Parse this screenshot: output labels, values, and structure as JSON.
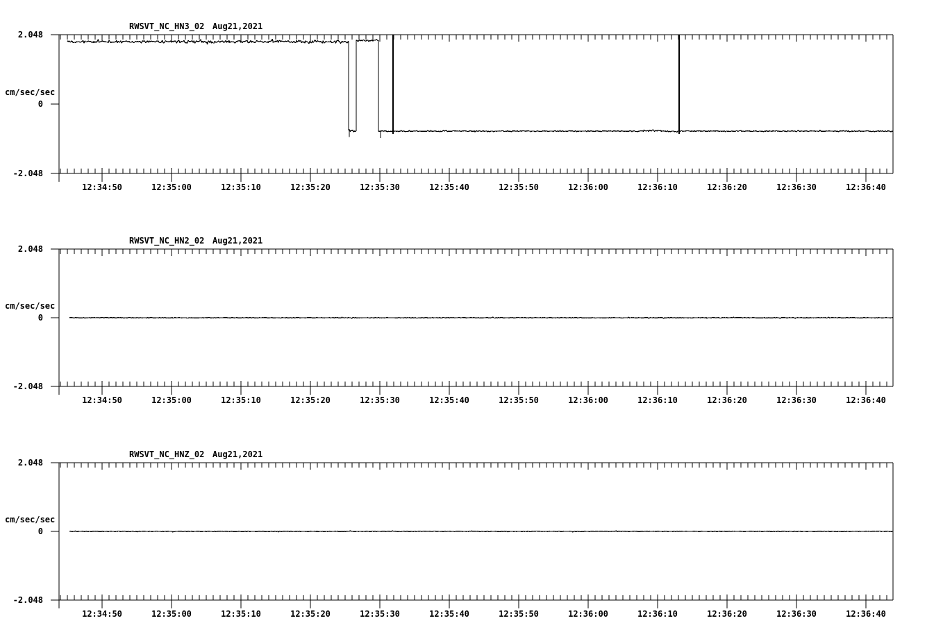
{
  "page": {
    "background": "#ffffff",
    "ink": "#000000"
  },
  "chart_data": [
    {
      "type": "line",
      "title": "RWSVT_NC_HN3_02",
      "date": "Aug21,2021",
      "ylabel": "cm/sec/sec",
      "ytick_labels": [
        "2.048",
        "0",
        "-2.048"
      ],
      "ylim": [
        -2.048,
        2.048
      ],
      "grid": false,
      "xminor_interval_s": 1,
      "xmajor_interval_s": 10,
      "xtick_labels": [
        "12:34:50",
        "12:35:00",
        "12:35:10",
        "12:35:20",
        "12:35:30",
        "12:35:40",
        "12:35:50",
        "12:36:00",
        "12:36:10",
        "12:36:20",
        "12:36:30",
        "12:36:40"
      ],
      "trace": {
        "units": "cm/sec/sec",
        "t_reference": "seconds after 12:34:50",
        "segments": [
          {
            "t0": -5.0,
            "t1": 35.5,
            "value": 1.84,
            "noise": 0.05
          },
          {
            "t0": 35.5,
            "t1": 36.6,
            "value": -0.79,
            "noise": 0.05
          },
          {
            "t0": 36.6,
            "t1": 39.8,
            "value": 1.88,
            "noise": 0.035
          },
          {
            "t0": 39.8,
            "t1": 78.0,
            "value": -0.8,
            "noise": 0.018
          },
          {
            "t0": 78.0,
            "t1": 80.5,
            "value": -0.78,
            "noise": 0.04
          },
          {
            "t0": 80.5,
            "t1": 113.9,
            "value": -0.8,
            "noise": 0.018
          }
        ],
        "spikes": [
          {
            "t": 35.6,
            "value": -0.97
          },
          {
            "t": 40.1,
            "value": -1.0
          },
          {
            "t": 41.9,
            "value": 2.048
          },
          {
            "t": 83.1,
            "value": 2.048
          }
        ]
      }
    },
    {
      "type": "line",
      "title": "RWSVT_NC_HN2_02",
      "date": "Aug21,2021",
      "ylabel": "cm/sec/sec",
      "ytick_labels": [
        "2.048",
        "0",
        "-2.048"
      ],
      "ylim": [
        -2.048,
        2.048
      ],
      "grid": false,
      "xminor_interval_s": 1,
      "xmajor_interval_s": 10,
      "xtick_labels": [
        "12:34:50",
        "12:35:00",
        "12:35:10",
        "12:35:20",
        "12:35:30",
        "12:35:40",
        "12:35:50",
        "12:36:00",
        "12:36:10",
        "12:36:20",
        "12:36:30",
        "12:36:40"
      ],
      "trace": {
        "units": "cm/sec/sec",
        "t_reference": "seconds after 12:34:50",
        "segments": [
          {
            "t0": -4.7,
            "t1": 113.9,
            "value": 0.0,
            "noise": 0.012
          }
        ],
        "spikes": []
      }
    },
    {
      "type": "line",
      "title": "RWSVT_NC_HNZ_02",
      "date": "Aug21,2021",
      "ylabel": "cm/sec/sec",
      "ytick_labels": [
        "2.048",
        "0",
        "-2.048"
      ],
      "ylim": [
        -2.048,
        2.048
      ],
      "grid": false,
      "xminor_interval_s": 1,
      "xmajor_interval_s": 10,
      "xtick_labels": [
        "12:34:50",
        "12:35:00",
        "12:35:10",
        "12:35:20",
        "12:35:30",
        "12:35:40",
        "12:35:50",
        "12:36:00",
        "12:36:10",
        "12:36:20",
        "12:36:30",
        "12:36:40"
      ],
      "trace": {
        "units": "cm/sec/sec",
        "t_reference": "seconds after 12:34:50",
        "segments": [
          {
            "t0": -4.7,
            "t1": 113.9,
            "value": 0.0,
            "noise": 0.012
          }
        ],
        "spikes": []
      }
    }
  ]
}
